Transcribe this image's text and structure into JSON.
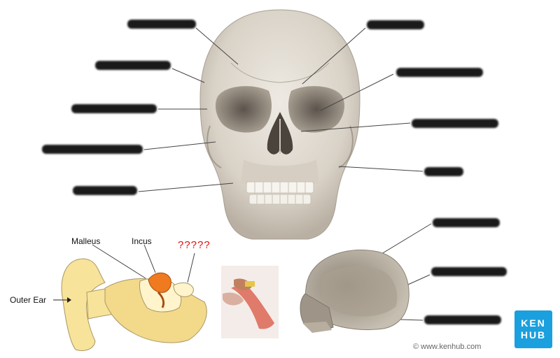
{
  "ear_labels": {
    "malleus": "Malleus",
    "incus": "Incus",
    "unknown": "?????",
    "outer_ear": "Outer Ear"
  },
  "credit": "© www.kenhub.com",
  "logo": {
    "line1": "KEN",
    "line2": "HUB"
  },
  "colors": {
    "bone": "#e6e0d6",
    "bone_shadow": "#b8b0a4",
    "ear_yellow": "#f8e39a",
    "ossicle_orange": "#f07a20",
    "question_red": "#e01010",
    "brand_blue": "#1aa0de"
  }
}
